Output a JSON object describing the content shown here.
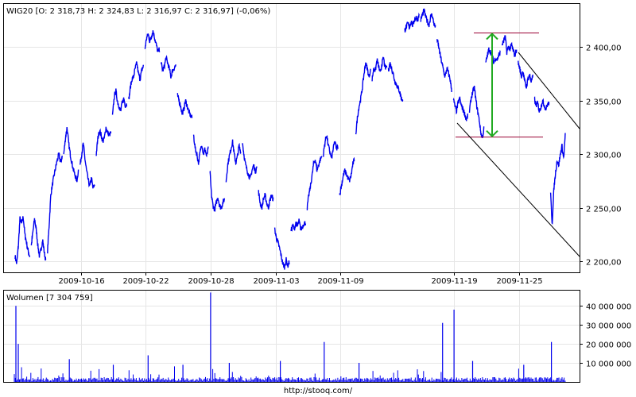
{
  "chart_data": [
    {
      "type": "line",
      "legend": "WIG20 [O: 2 318,73  H: 2 324,83  L: 2 316,97  C: 2 316,97] (-0,06%)",
      "color": "#0000ee",
      "x_tick_labels": [
        "2009-10-16",
        "2009-10-22",
        "2009-10-28",
        "2009-11-03",
        "2009-11-09",
        "2009-11-19",
        "2009-11-25"
      ],
      "y_tick_labels": [
        "2 200,00",
        "2 250,00",
        "2 300,00",
        "2 350,00",
        "2 400,00"
      ],
      "y_ticks": [
        2200,
        2250,
        2300,
        2350,
        2400
      ],
      "ylim": [
        2190,
        2440
      ],
      "session_dates": [
        "2009-10-12",
        "2009-10-13",
        "2009-10-14",
        "2009-10-15",
        "2009-10-16",
        "2009-10-19",
        "2009-10-20",
        "2009-10-21",
        "2009-10-22",
        "2009-10-23",
        "2009-10-26",
        "2009-10-27",
        "2009-10-28",
        "2009-10-29",
        "2009-10-30",
        "2009-11-02",
        "2009-11-03",
        "2009-11-04",
        "2009-11-05",
        "2009-11-06",
        "2009-11-09",
        "2009-11-10",
        "2009-11-12",
        "2009-11-13",
        "2009-11-16",
        "2009-11-17",
        "2009-11-18",
        "2009-11-19",
        "2009-11-20",
        "2009-11-23",
        "2009-11-24",
        "2009-11-25",
        "2009-11-26",
        "2009-11-27"
      ],
      "session_values": [
        [
          2205,
          2198,
          2215,
          2240,
          2235,
          2242,
          2225,
          2218,
          2210,
          2205
        ],
        [
          2215,
          2228,
          2240,
          2230,
          2215,
          2205,
          2212,
          2220,
          2208,
          2200
        ],
        [
          2210,
          2235,
          2262,
          2272,
          2280,
          2288,
          2295,
          2300,
          2292,
          2298
        ],
        [
          2300,
          2315,
          2325,
          2310,
          2300,
          2292,
          2285,
          2280,
          2275,
          2285
        ],
        [
          2290,
          2300,
          2310,
          2296,
          2285,
          2276,
          2270,
          2278,
          2268,
          2272
        ],
        [
          2300,
          2315,
          2322,
          2318,
          2312,
          2315,
          2325,
          2320,
          2318,
          2320
        ],
        [
          2335,
          2352,
          2360,
          2350,
          2345,
          2340,
          2348,
          2352,
          2345,
          2348
        ],
        [
          2350,
          2362,
          2370,
          2372,
          2380,
          2385,
          2375,
          2370,
          2378,
          2382
        ],
        [
          2398,
          2408,
          2412,
          2405,
          2410,
          2415,
          2408,
          2402,
          2395,
          2398
        ],
        [
          2385,
          2378,
          2382,
          2390,
          2385,
          2380,
          2372,
          2378,
          2380,
          2383
        ],
        [
          2355,
          2350,
          2345,
          2338,
          2342,
          2350,
          2345,
          2340,
          2336,
          2334
        ],
        [
          2318,
          2305,
          2300,
          2292,
          2302,
          2310,
          2300,
          2305,
          2298,
          2305
        ],
        [
          2285,
          2262,
          2252,
          2248,
          2255,
          2260,
          2252,
          2250,
          2255,
          2258
        ],
        [
          2275,
          2290,
          2298,
          2305,
          2312,
          2300,
          2292,
          2298,
          2308,
          2302
        ],
        [
          2312,
          2300,
          2290,
          2285,
          2280,
          2278,
          2285,
          2290,
          2284,
          2288
        ],
        [
          2265,
          2255,
          2250,
          2258,
          2262,
          2255,
          2250,
          2257,
          2262,
          2258
        ],
        [
          2230,
          2222,
          2218,
          2212,
          2205,
          2198,
          2195,
          2202,
          2196,
          2200
        ],
        [
          2228,
          2234,
          2230,
          2236,
          2233,
          2238,
          2230,
          2232,
          2236,
          2236
        ],
        [
          2250,
          2262,
          2270,
          2280,
          2292,
          2295,
          2285,
          2290,
          2295,
          2298
        ],
        [
          2300,
          2312,
          2318,
          2308,
          2302,
          2296,
          2305,
          2312,
          2305,
          2308
        ],
        [
          2262,
          2270,
          2278,
          2285,
          2282,
          2278,
          2275,
          2280,
          2290,
          2295
        ],
        [
          2320,
          2335,
          2345,
          2352,
          2362,
          2375,
          2385,
          2380,
          2372,
          2378
        ],
        [
          2370,
          2380,
          2378,
          2388,
          2382,
          2375,
          2384,
          2390,
          2380,
          2382
        ],
        [
          2378,
          2385,
          2380,
          2375,
          2368,
          2365,
          2362,
          2358,
          2352,
          2350
        ],
        [
          2415,
          2418,
          2422,
          2418,
          2424,
          2420,
          2425,
          2428,
          2425,
          2430
        ],
        [
          2425,
          2430,
          2434,
          2428,
          2424,
          2420,
          2428,
          2430,
          2422,
          2418
        ],
        [
          2408,
          2400,
          2392,
          2385,
          2378,
          2372,
          2380,
          2376,
          2370,
          2360
        ],
        [
          2352,
          2345,
          2340,
          2348,
          2352,
          2345,
          2342,
          2338,
          2332,
          2336
        ],
        [
          2340,
          2352,
          2358,
          2362,
          2350,
          2340,
          2332,
          2320,
          2315,
          2325
        ],
        [
          2385,
          2392,
          2398,
          2395,
          2392,
          2385,
          2390,
          2388,
          2392,
          2395
        ],
        [
          2402,
          2405,
          2410,
          2395,
          2400,
          2398,
          2402,
          2396,
          2392,
          2398
        ],
        [
          2385,
          2380,
          2372,
          2378,
          2368,
          2362,
          2370,
          2374,
          2368,
          2372
        ],
        [
          2352,
          2345,
          2348,
          2340,
          2344,
          2350,
          2346,
          2342,
          2346,
          2348
        ],
        [
          2262,
          2235,
          2268,
          2282,
          2295,
          2290,
          2300,
          2308,
          2296,
          2318
        ]
      ],
      "annotation_lines_price": [
        2413,
        2316
      ],
      "xlabel": "",
      "ylabel": ""
    },
    {
      "type": "bar",
      "legend": "Wolumen [7 304 759]",
      "color": "#0000ee",
      "y_tick_labels": [
        "10 000 000",
        "20 000 000",
        "30 000 000",
        "40 000 000"
      ],
      "y_ticks": [
        10000000,
        20000000,
        30000000,
        40000000
      ],
      "ylim": [
        0,
        48000000
      ],
      "spikes": [
        {
          "session": 0,
          "value": 40000000
        },
        {
          "session": 0,
          "value": 20000000
        },
        {
          "session": 3,
          "value": 12000000
        },
        {
          "session": 6,
          "value": 9000000
        },
        {
          "session": 8,
          "value": 14000000
        },
        {
          "session": 10,
          "value": 9000000
        },
        {
          "session": 12,
          "value": 47000000
        },
        {
          "session": 13,
          "value": 10000000
        },
        {
          "session": 16,
          "value": 11000000
        },
        {
          "session": 19,
          "value": 21000000
        },
        {
          "session": 21,
          "value": 10000000
        },
        {
          "session": 26,
          "value": 31000000
        },
        {
          "session": 27,
          "value": 38000000
        },
        {
          "session": 28,
          "value": 11000000
        },
        {
          "session": 31,
          "value": 9000000
        },
        {
          "session": 33,
          "value": 21000000
        }
      ],
      "base_level": 1500000
    }
  ],
  "footer": "http://stooq.com/"
}
